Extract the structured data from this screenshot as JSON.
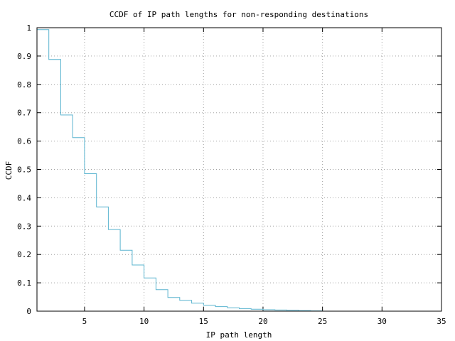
{
  "chart_data": {
    "type": "line",
    "step": true,
    "title": "CCDF of IP path lengths for non-responding destinations",
    "xlabel": "IP path length",
    "ylabel": "CCDF",
    "xlim": [
      1,
      35
    ],
    "ylim": [
      0,
      1
    ],
    "x_ticks": [
      5,
      10,
      15,
      20,
      25,
      30,
      35
    ],
    "y_ticks": [
      0,
      0.1,
      0.2,
      0.3,
      0.4,
      0.5,
      0.6,
      0.7,
      0.8,
      0.9,
      1
    ],
    "x_tick_labels": [
      "5",
      "10",
      "15",
      "20",
      "25",
      "30",
      "35"
    ],
    "y_tick_labels": [
      "0",
      "0.1",
      "0.2",
      "0.3",
      "0.4",
      "0.5",
      "0.6",
      "0.7",
      "0.8",
      "0.9",
      "1"
    ],
    "grid": true,
    "line_color": "#5ab4cf",
    "series": [
      {
        "x": [
          1,
          2,
          3,
          4,
          5,
          6,
          7,
          8,
          9,
          10,
          11,
          12,
          13,
          14,
          15,
          16,
          17,
          18,
          19,
          20,
          21,
          22,
          23,
          24
        ],
        "y": [
          0.993,
          0.888,
          0.692,
          0.612,
          0.485,
          0.368,
          0.288,
          0.215,
          0.163,
          0.117,
          0.076,
          0.048,
          0.038,
          0.028,
          0.021,
          0.016,
          0.012,
          0.009,
          0.007,
          0.005,
          0.004,
          0.003,
          0.002,
          0.001
        ]
      }
    ]
  }
}
